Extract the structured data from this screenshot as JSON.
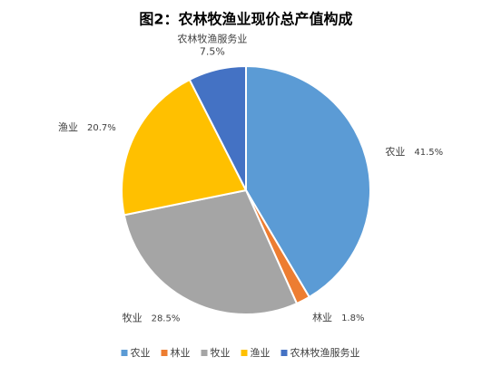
{
  "chart_data": {
    "type": "pie",
    "title": "图2：农林牧渔业现价总产值构成",
    "categories": [
      "农业",
      "林业",
      "牧业",
      "渔业",
      "农林牧渔服务业"
    ],
    "values": [
      41.5,
      1.8,
      28.5,
      20.7,
      7.5
    ],
    "value_labels": [
      "41.5%",
      "1.8%",
      "28.5%",
      "20.7%",
      "7.5%"
    ],
    "colors": [
      "#5b9bd5",
      "#ed7d31",
      "#a5a5a5",
      "#ffc000",
      "#4472c4"
    ],
    "legend": "bottom"
  }
}
